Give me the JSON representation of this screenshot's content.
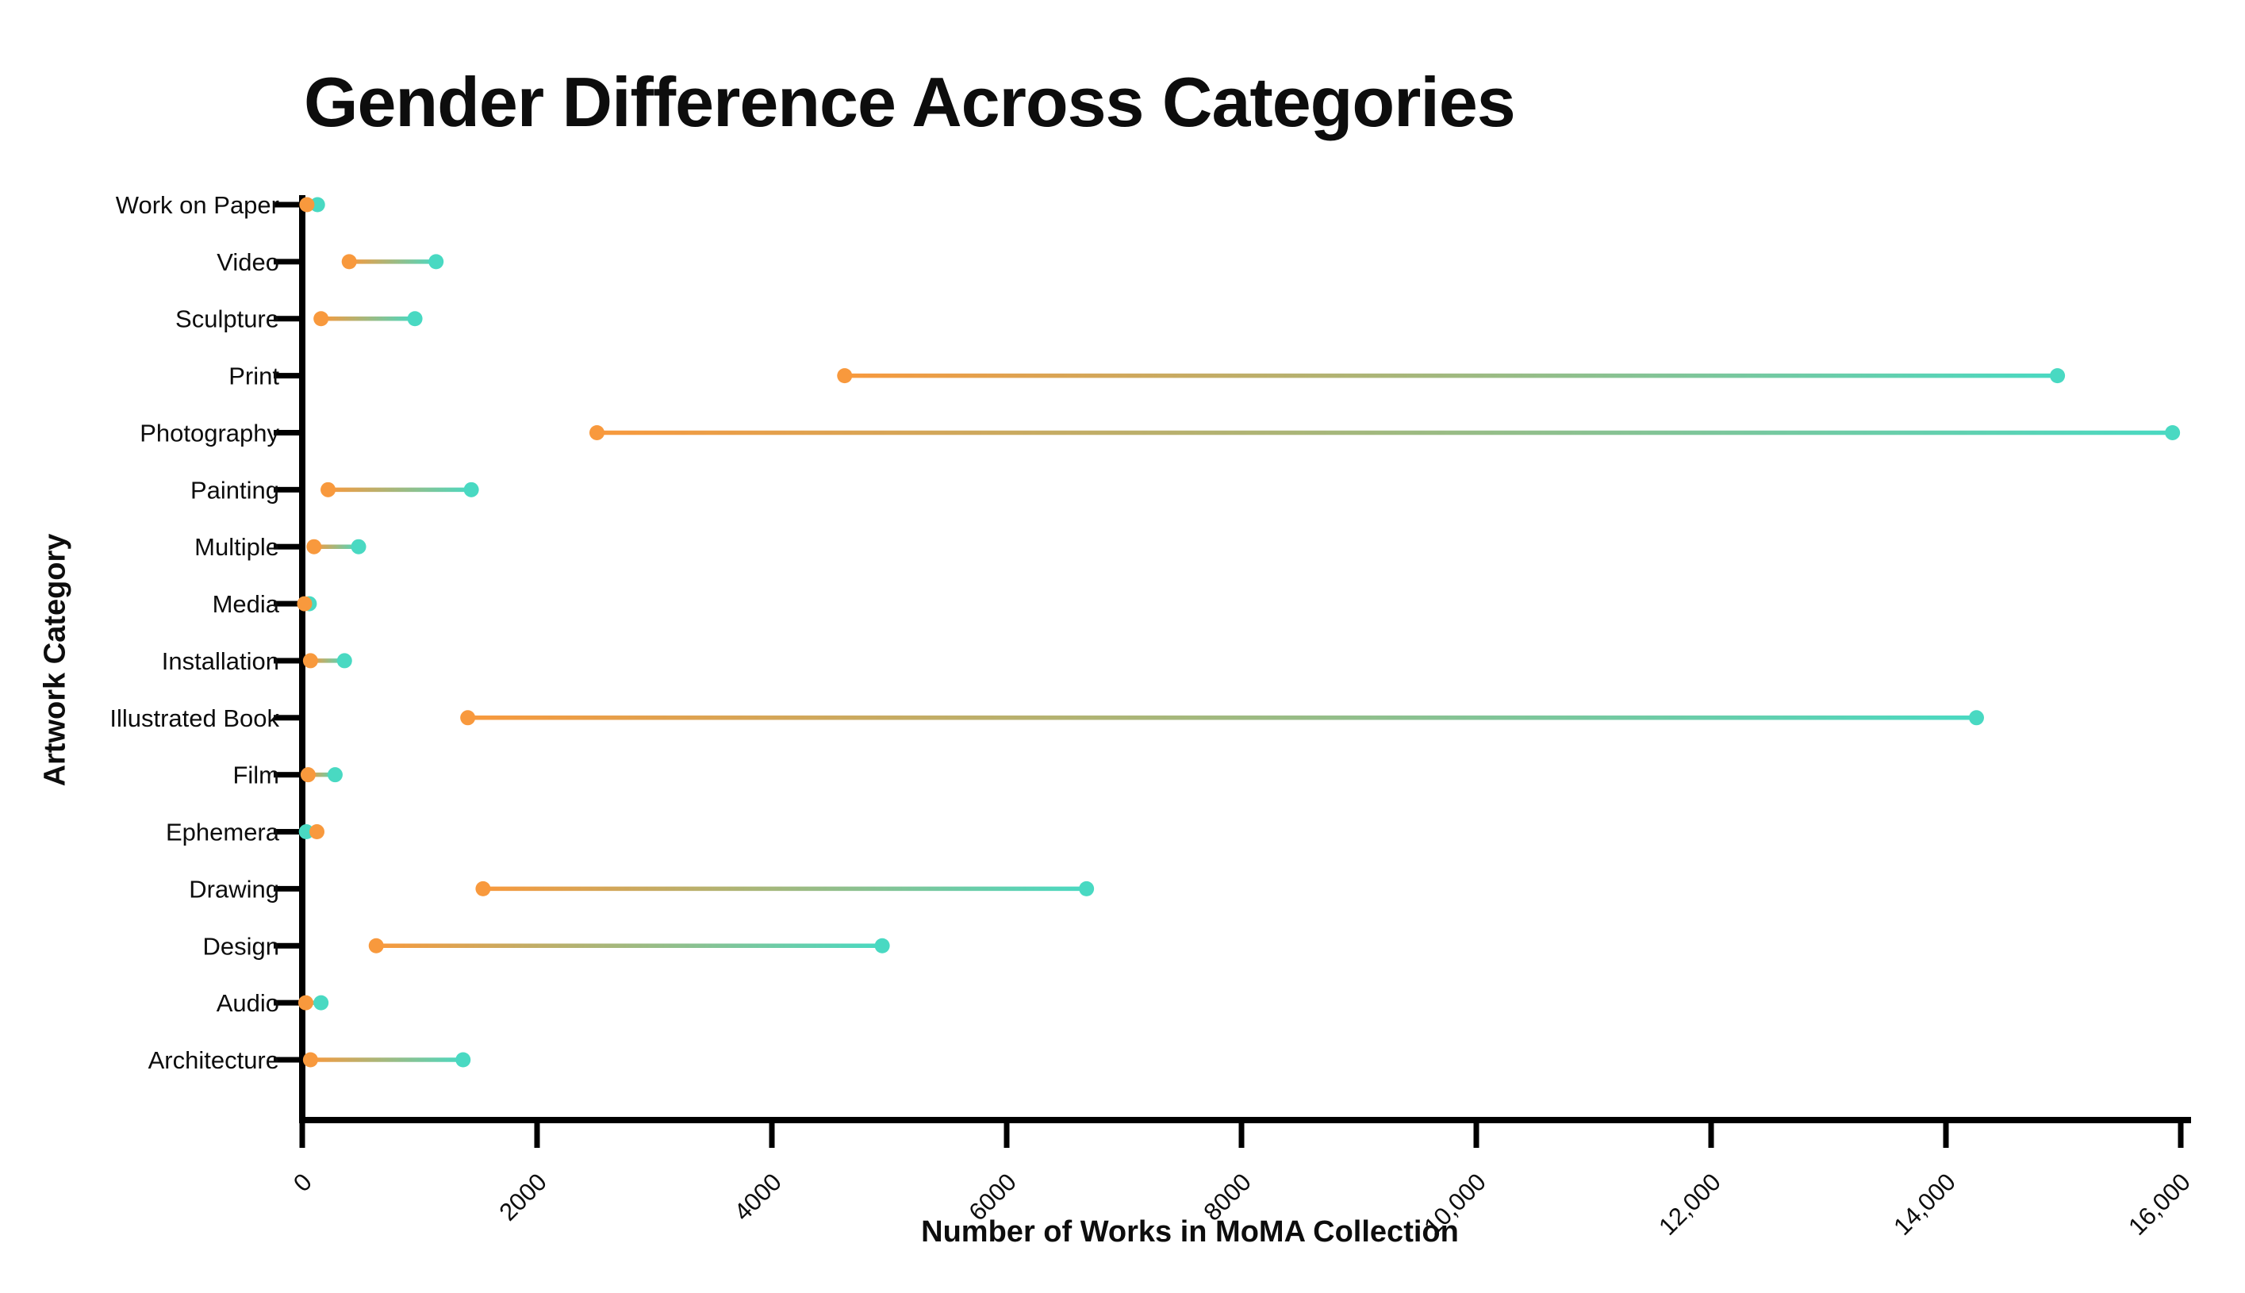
{
  "title": "Gender Difference Across Categories",
  "colors": {
    "orange": "#F8993D",
    "teal": "#49D9C2",
    "axis": "#000000",
    "text": "#0d0d0d",
    "background": "#FFFFFF"
  },
  "chart_data": {
    "type": "scatter",
    "variant": "dumbbell",
    "title": "Gender Difference Across Categories",
    "xlabel": "Number of Works in MoMA Collection",
    "ylabel": "Artwork Category",
    "xlim": [
      0,
      16000
    ],
    "grid": false,
    "legend_position": "none",
    "xticks": [
      0,
      2000,
      4000,
      6000,
      8000,
      10000,
      12000,
      14000,
      16000
    ],
    "xtick_labels": [
      "0",
      "2000",
      "4000",
      "6000",
      "8000",
      "10,000",
      "12,000",
      "14,000",
      "16,000"
    ],
    "categories_top_to_bottom": [
      "Work on Paper",
      "Video",
      "Sculpture",
      "Print",
      "Photography",
      "Painting",
      "Multiple",
      "Media",
      "Installation",
      "Illustrated Book",
      "Film",
      "Ephemera",
      "Drawing",
      "Design",
      "Audio",
      "Architecture"
    ],
    "series": [
      {
        "name": "orange",
        "color": "#F8993D",
        "values": [
          40,
          400,
          160,
          4620,
          2510,
          220,
          100,
          20,
          70,
          1410,
          50,
          125,
          1540,
          630,
          30,
          70
        ]
      },
      {
        "name": "teal",
        "color": "#49D9C2",
        "values": [
          130,
          1140,
          960,
          14950,
          15930,
          1440,
          480,
          60,
          360,
          14260,
          280,
          35,
          6680,
          4940,
          160,
          1370
        ]
      }
    ]
  }
}
